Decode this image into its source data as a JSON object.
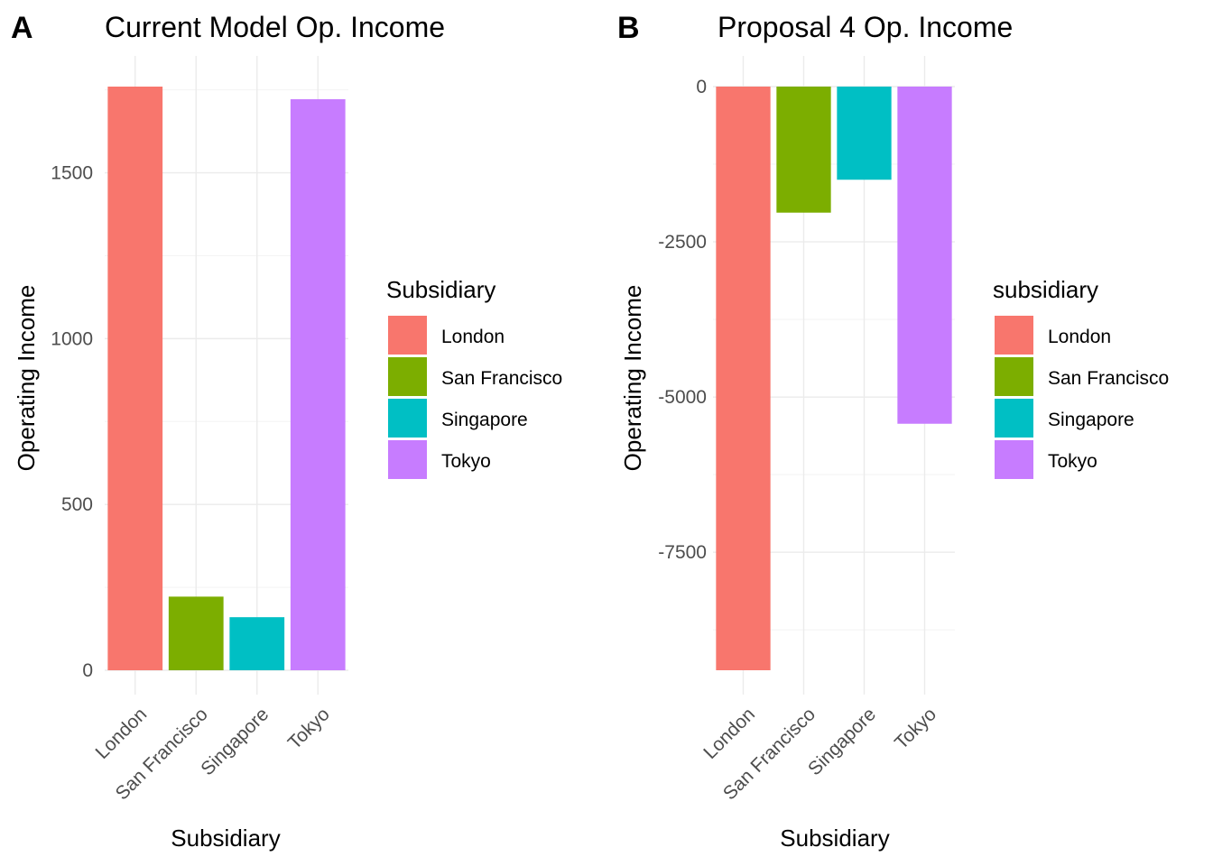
{
  "chart_data": [
    {
      "panel_label": "A",
      "type": "bar",
      "title": "Current Model Op. Income",
      "xlabel": "Subsidiary",
      "ylabel": "Operating Income",
      "categories": [
        "London",
        "San Francisco",
        "Singapore",
        "Tokyo"
      ],
      "values": [
        1760,
        222,
        160,
        1722
      ],
      "colors": [
        "#F8766D",
        "#7CAE00",
        "#00BFC4",
        "#C77CFF"
      ],
      "ylim": [
        0,
        1760
      ],
      "yticks": [
        0,
        500,
        1000,
        1500
      ],
      "ytick_labels": [
        "0",
        "500",
        "1000",
        "1500"
      ],
      "grid": true,
      "legend": {
        "title": "Subsidiary",
        "placement": "right",
        "entries": [
          "London",
          "San Francisco",
          "Singapore",
          "Tokyo"
        ]
      }
    },
    {
      "panel_label": "B",
      "type": "bar",
      "title": "Proposal 4 Op. Income",
      "xlabel": "Subsidiary",
      "ylabel": "Operating Income",
      "categories": [
        "London",
        "San Francisco",
        "Singapore",
        "Tokyo"
      ],
      "values": [
        -9400,
        -2030,
        -1500,
        -5430
      ],
      "colors": [
        "#F8766D",
        "#7CAE00",
        "#00BFC4",
        "#C77CFF"
      ],
      "ylim": [
        -9400,
        0
      ],
      "yticks": [
        -7500,
        -5000,
        -2500,
        0
      ],
      "ytick_labels": [
        "-7500",
        "-5000",
        "-2500",
        "0"
      ],
      "grid": true,
      "legend": {
        "title": "subsidiary",
        "placement": "right",
        "entries": [
          "London",
          "San Francisco",
          "Singapore",
          "Tokyo"
        ]
      }
    }
  ]
}
